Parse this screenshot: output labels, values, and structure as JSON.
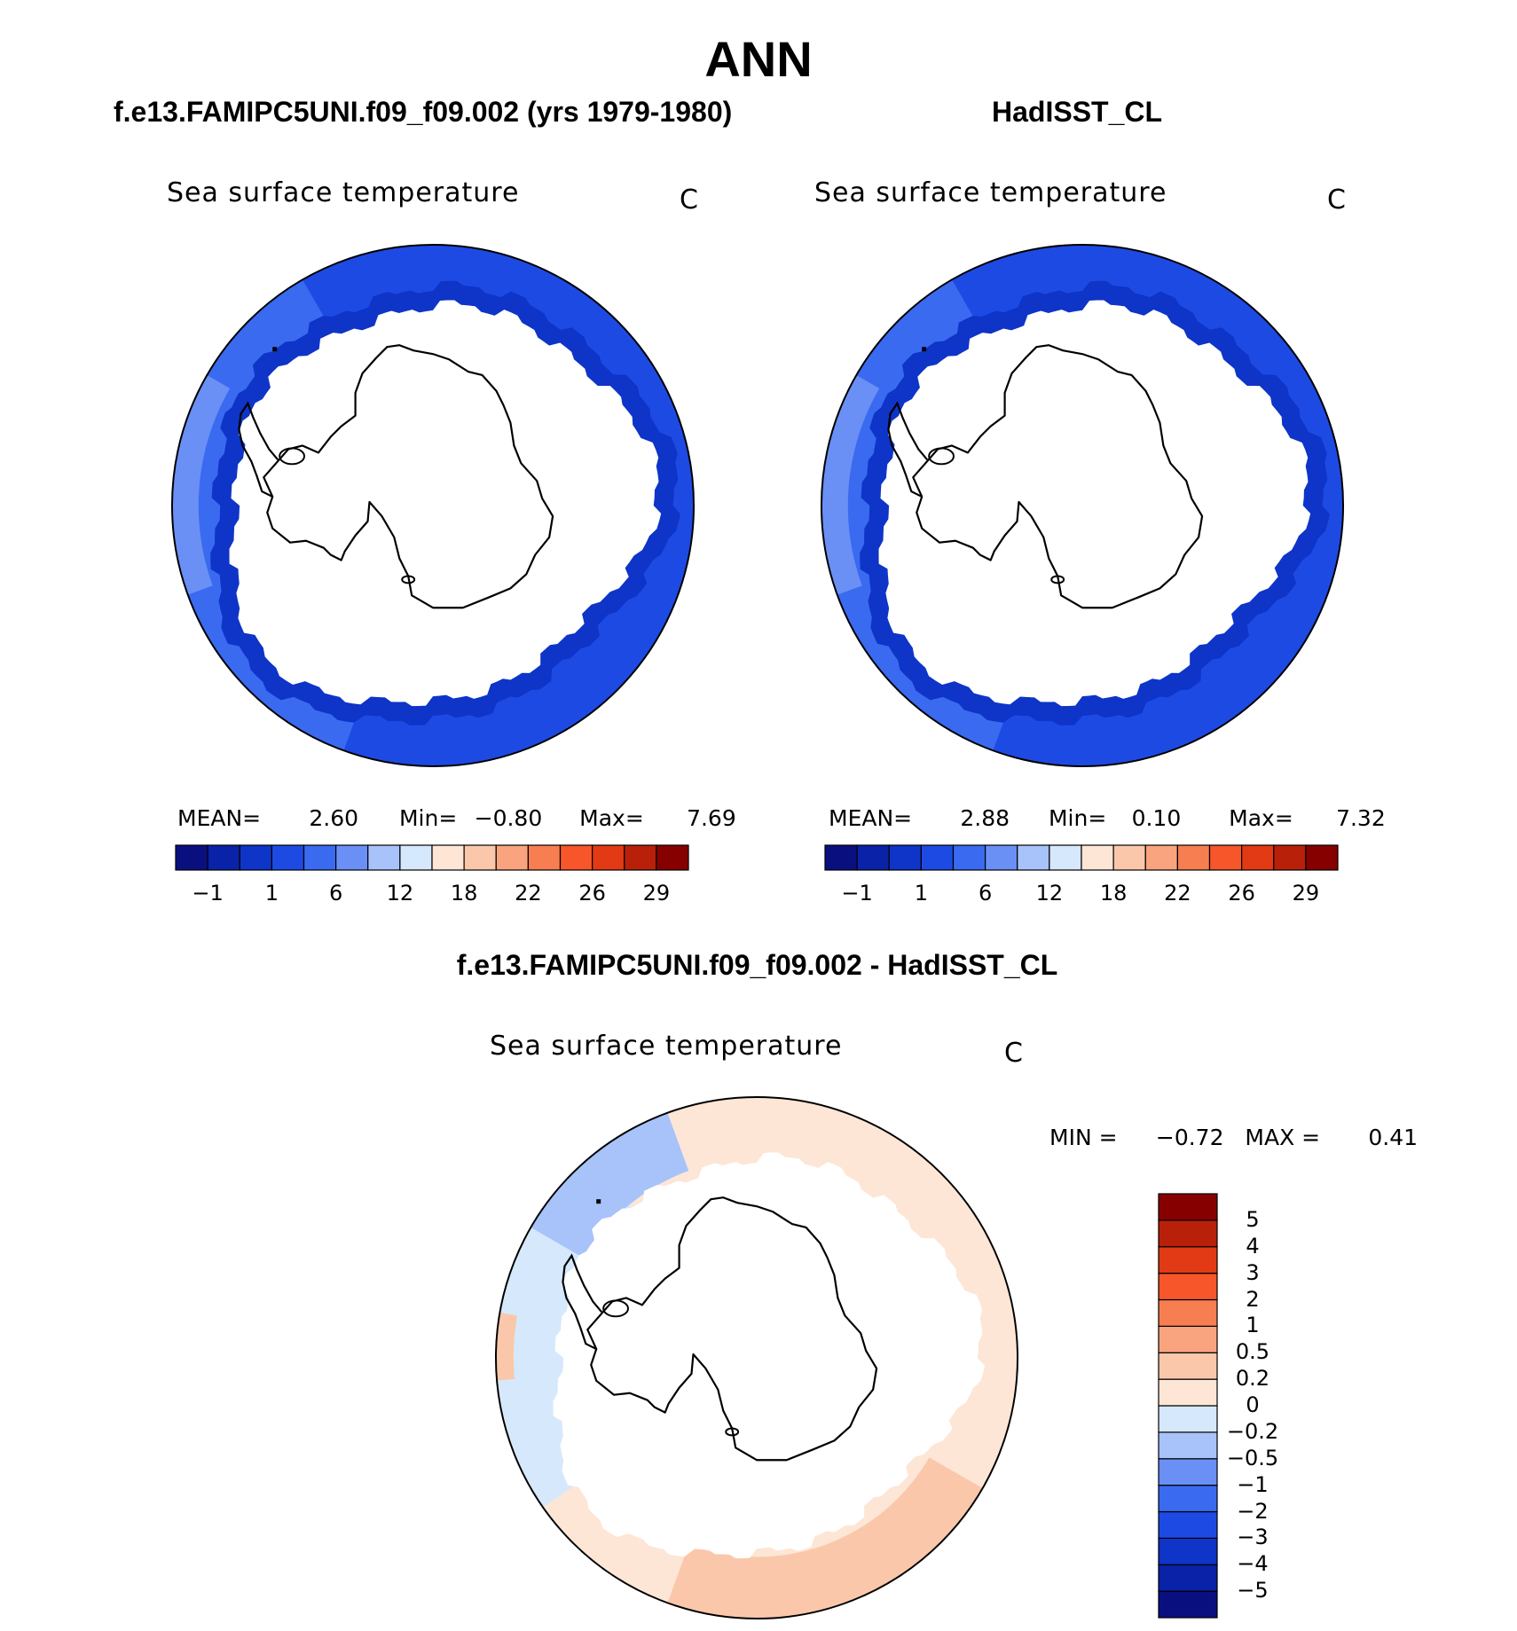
{
  "title": "ANN",
  "panels": [
    {
      "id": "model",
      "case_title": "f.e13.FAMIPC5UNI.f09_f09.002 (yrs 1979-1980)",
      "variable": "Sea surface temperature",
      "units": "C",
      "stats": {
        "mean_label": "MEAN=",
        "mean": "2.60",
        "min_label": "Min=",
        "min": "−0.80",
        "max_label": "Max=",
        "max": "7.69"
      }
    },
    {
      "id": "obs",
      "case_title": "HadISST_CL",
      "variable": "Sea surface temperature",
      "units": "C",
      "stats": {
        "mean_label": "MEAN=",
        "mean": "2.88",
        "min_label": "Min=",
        "min": "0.10",
        "max_label": "Max=",
        "max": "7.32"
      }
    },
    {
      "id": "diff",
      "case_title": "f.e13.FAMIPC5UNI.f09_f09.002 - HadISST_CL",
      "variable": "Sea surface temperature",
      "units": "C",
      "stats": {
        "min_label": "MIN =",
        "min": "−0.72",
        "max_label": "MAX =",
        "max": "0.41"
      }
    }
  ],
  "colorbars": {
    "abs": {
      "colors": [
        "#0a0f80",
        "#0a22a8",
        "#0e34c8",
        "#1e4ae4",
        "#3a6af0",
        "#6a90f6",
        "#a8c2fa",
        "#d6e8fb",
        "#fde6d6",
        "#fbc7ab",
        "#f9a47e",
        "#f77e50",
        "#f6562a",
        "#e23a14",
        "#b8200a",
        "#860000"
      ],
      "tick_labels": [
        "−1",
        "1",
        "6",
        "12",
        "18",
        "22",
        "26",
        "29"
      ]
    },
    "diff": {
      "colors": [
        "#0a0f80",
        "#0a22a8",
        "#0e34c8",
        "#1e4ae4",
        "#3a6af0",
        "#6a90f6",
        "#a8c2fa",
        "#d6e8fb",
        "#fde6d6",
        "#fbc7ab",
        "#f9a47e",
        "#f77e50",
        "#f6562a",
        "#e23a14",
        "#b8200a",
        "#860000"
      ],
      "tick_labels": [
        "−5",
        "−4",
        "−3",
        "−2",
        "−1",
        "−0.5",
        "−0.2",
        "0",
        "0.2",
        "0.5",
        "1",
        "2",
        "3",
        "4",
        "5"
      ]
    }
  },
  "map_colors": {
    "coast": "#000000",
    "sst_bands": [
      "#0e34c8",
      "#1e4ae4",
      "#3a6af0",
      "#6a90f6"
    ],
    "diff_bands": [
      "#fde6d6",
      "#fbc7ab",
      "#d6e8fb",
      "#a8c2fa"
    ]
  }
}
